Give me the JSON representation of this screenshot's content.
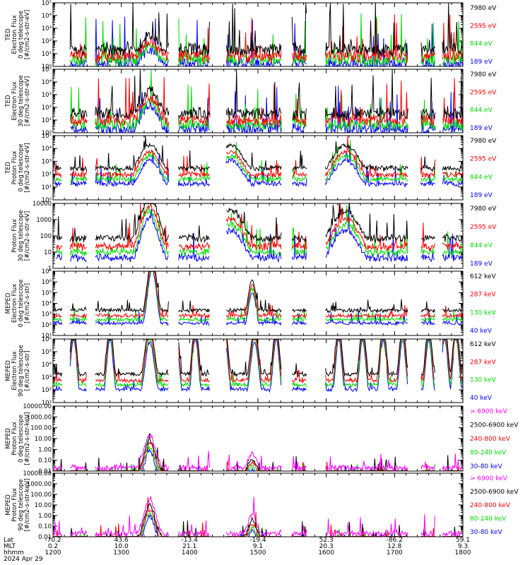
{
  "figure": {
    "footer": {
      "row_labels": [
        "Lat",
        "MLT",
        "hhmm",
        "2024 Apr 29"
      ],
      "columns": [
        {
          "lat": "-70.2",
          "mlt": "0.2",
          "hhmm": "1200"
        },
        {
          "lat": "43.6",
          "mlt": "10.0",
          "hhmm": "1300"
        },
        {
          "lat": "-13.4",
          "mlt": "21.1",
          "hhmm": "1400"
        },
        {
          "lat": "-19.4",
          "mlt": "9.1",
          "hhmm": "1500"
        },
        {
          "lat": "52.3",
          "mlt": "20.3",
          "hhmm": "1600"
        },
        {
          "lat": "-86.2",
          "mlt": "12.8",
          "hhmm": "1700"
        },
        {
          "lat": "59.1",
          "mlt": "9.3",
          "hhmm": "1800"
        }
      ]
    }
  },
  "chart_data": [
    {
      "type": "line",
      "ylabel": [
        "TED",
        "Electron Flux",
        "0 deg telescope",
        "[#/cm2-s-str-eV]"
      ],
      "yscale": "log",
      "ylim": [
        1,
        100000
      ],
      "yticks": [
        "10⁰",
        "10¹",
        "10²",
        "10³",
        "10⁴",
        "10⁵"
      ],
      "series": [
        {
          "name": "7980 eV",
          "color": "#000000"
        },
        {
          "name": "2595 eV",
          "color": "#ff0000"
        },
        {
          "name": "844 eV",
          "color": "#00dd00"
        },
        {
          "name": "189 eV",
          "color": "#0000ff"
        }
      ],
      "profile": {
        "base": [
          1,
          1.4
        ],
        "peaks": [
          [
            1325,
            1.8,
            12
          ]
        ],
        "noise": 2.2,
        "start": 1.5
      }
    },
    {
      "type": "line",
      "ylabel": [
        "TED",
        "Electron Flux",
        "30 deg telescope",
        "[#/cm2-s-str-eV]"
      ],
      "yscale": "log",
      "ylim": [
        1,
        100000
      ],
      "yticks": [
        "10⁰",
        "10¹",
        "10²",
        "10³",
        "10⁴",
        "10⁵"
      ],
      "series": [
        {
          "name": "7980 eV",
          "color": "#000000"
        },
        {
          "name": "2595 eV",
          "color": "#ff0000"
        },
        {
          "name": "844 eV",
          "color": "#00dd00"
        },
        {
          "name": "189 eV",
          "color": "#0000ff"
        }
      ],
      "profile": {
        "base": [
          1.2,
          1.5
        ],
        "peaks": [
          [
            1325,
            2.6,
            12
          ]
        ],
        "noise": 2.0,
        "start": 1.0
      }
    },
    {
      "type": "line",
      "ylabel": [
        "TED",
        "Proton Flux",
        "0 deg telescope",
        "[#/cm2-s-str-eV]"
      ],
      "yscale": "log",
      "ylim": [
        1,
        100000
      ],
      "yticks": [
        "10⁰",
        "10¹",
        "10²",
        "10³",
        "10⁴",
        "10⁵"
      ],
      "series": [
        {
          "name": "7980 eV",
          "color": "#000000"
        },
        {
          "name": "2595 eV",
          "color": "#ff0000"
        },
        {
          "name": "844 eV",
          "color": "#00dd00"
        },
        {
          "name": "189 eV",
          "color": "#0000ff"
        }
      ],
      "profile": {
        "base": [
          2.2,
          2.4
        ],
        "peaks": [
          [
            1325,
            3.0,
            15
          ],
          [
            1436,
            3.0,
            18
          ],
          [
            1617,
            3.0,
            18
          ]
        ],
        "noise": 0.8,
        "start": 0.2
      }
    },
    {
      "type": "line",
      "ylabel": [
        "Proton Flux",
        "30 deg telescope",
        "[#/cm2-s-str-eV]"
      ],
      "yscale": "log",
      "ylim": [
        1,
        10000
      ],
      "yticks": [
        "1",
        "10",
        "100",
        "1000",
        "10000"
      ],
      "series": [
        {
          "name": "7980 eV",
          "color": "#000000"
        },
        {
          "name": "2595 eV",
          "color": "#ff0000"
        },
        {
          "name": "844 eV",
          "color": "#00dd00"
        },
        {
          "name": "189 eV",
          "color": "#0000ff"
        }
      ],
      "profile": {
        "base": [
          1.6,
          1.8
        ],
        "peaks": [
          [
            1325,
            3.4,
            12
          ],
          [
            1436,
            2.6,
            18
          ],
          [
            1617,
            2.6,
            18
          ]
        ],
        "noise": 0.9,
        "start": 0.3
      }
    },
    {
      "type": "line",
      "ylabel": [
        "MEPED",
        "Electron Flux",
        "0 deg telescope",
        "[#/cm2-s-str]"
      ],
      "yscale": "log",
      "ylim": [
        10,
        10000000
      ],
      "yticks": [
        "10¹",
        "10²",
        "10³",
        "10⁴",
        "10⁵",
        "10⁶",
        "10⁷"
      ],
      "series": [
        {
          "name": "612 keV",
          "color": "#000000"
        },
        {
          "name": "287 keV",
          "color": "#ff0000"
        },
        {
          "name": "130 keV",
          "color": "#00dd00"
        },
        {
          "name": "40 keV",
          "color": "#0000ff"
        }
      ],
      "profile": {
        "base": [
          2.1,
          2.3
        ],
        "peaks": [
          [
            1327,
            6.1,
            6
          ],
          [
            1455,
            4.0,
            5
          ]
        ],
        "noise": 0.6,
        "start": 0.0
      }
    },
    {
      "type": "line",
      "ylabel": [
        "MEPED",
        "Electron Flux",
        "90 deg telescope",
        "[#/cm2-s-str]"
      ],
      "yscale": "log",
      "ylim": [
        10,
        1000000
      ],
      "yticks": [
        "10¹",
        "10²",
        "10³",
        "10⁴",
        "10⁵",
        "10⁶"
      ],
      "series": [
        {
          "name": "612 keV",
          "color": "#000000"
        },
        {
          "name": "287 keV",
          "color": "#ff0000"
        },
        {
          "name": "130 keV",
          "color": "#00dd00"
        },
        {
          "name": "40 keV",
          "color": "#0000ff"
        }
      ],
      "profile": {
        "base": [
          2.0,
          2.2
        ],
        "peaks": [
          [
            1218,
            5.0,
            4
          ],
          [
            1250,
            5.1,
            4
          ],
          [
            1325,
            4.8,
            6
          ],
          [
            1348,
            5.2,
            4
          ],
          [
            1405,
            5.1,
            4
          ],
          [
            1431,
            5.0,
            4
          ],
          [
            1457,
            4.8,
            5
          ],
          [
            1516,
            5.0,
            4
          ],
          [
            1555,
            5.1,
            4
          ],
          [
            1611,
            5.0,
            4
          ],
          [
            1632,
            5.0,
            4
          ],
          [
            1650,
            5.0,
            4
          ],
          [
            1707,
            5.0,
            4
          ],
          [
            1730,
            5.0,
            4
          ],
          [
            1744,
            5.1,
            4
          ],
          [
            1754,
            5.0,
            4
          ]
        ],
        "noise": 0.5,
        "start": 0.0
      }
    },
    {
      "type": "line",
      "ylabel": [
        "MEPED",
        "Proton Flux",
        "0 deg telescope",
        "[#/cm2-s-str-keV]"
      ],
      "yscale": "log",
      "ylim": [
        0.01,
        10000
      ],
      "yticks": [
        "0.01",
        "0.10",
        "1.00",
        "10.00",
        "100.00",
        "1000.00",
        "10000.00"
      ],
      "series": [
        {
          "name": "> 6900 keV",
          "color": "#ff00ff"
        },
        {
          "name": "2500-6900 keV",
          "color": "#000000"
        },
        {
          "name": "240-800 keV",
          "color": "#ff0000"
        },
        {
          "name": "80-240 keV",
          "color": "#00dd00"
        },
        {
          "name": "30-80 keV",
          "color": "#0000ff"
        }
      ],
      "profile": {
        "base": [
          0.0,
          0.3
        ],
        "peaks": [
          [
            1325,
            3.2,
            7
          ],
          [
            1455,
            1.5,
            5
          ]
        ],
        "noise": 0.9,
        "start": 0.0
      }
    },
    {
      "type": "line",
      "ylabel": [
        "MEPED",
        "Proton Flux",
        "90 deg telescope",
        "[#/cm2-s-str-keV]"
      ],
      "yscale": "log",
      "ylim": [
        0.01,
        10000
      ],
      "yticks": [
        "0.01",
        "0.10",
        "1.00",
        "10.00",
        "100.00",
        "1000.00",
        "10000.00"
      ],
      "series": [
        {
          "name": "> 6900 keV",
          "color": "#ff00ff"
        },
        {
          "name": "2500-6900 keV",
          "color": "#000000"
        },
        {
          "name": "240-800 keV",
          "color": "#ff0000"
        },
        {
          "name": "80-240 keV",
          "color": "#00dd00"
        },
        {
          "name": "30-80 keV",
          "color": "#0000ff"
        }
      ],
      "profile": {
        "base": [
          0.0,
          0.3
        ],
        "peaks": [
          [
            1325,
            3.3,
            7
          ],
          [
            1455,
            2.0,
            5
          ]
        ],
        "noise": 1.0,
        "start": 0.0
      }
    }
  ],
  "x_axis": {
    "ticks_hhmm": [
      "1200",
      "1300",
      "1400",
      "1500",
      "1600",
      "1700",
      "1800"
    ],
    "xlim": [
      "1200",
      "1800"
    ]
  }
}
